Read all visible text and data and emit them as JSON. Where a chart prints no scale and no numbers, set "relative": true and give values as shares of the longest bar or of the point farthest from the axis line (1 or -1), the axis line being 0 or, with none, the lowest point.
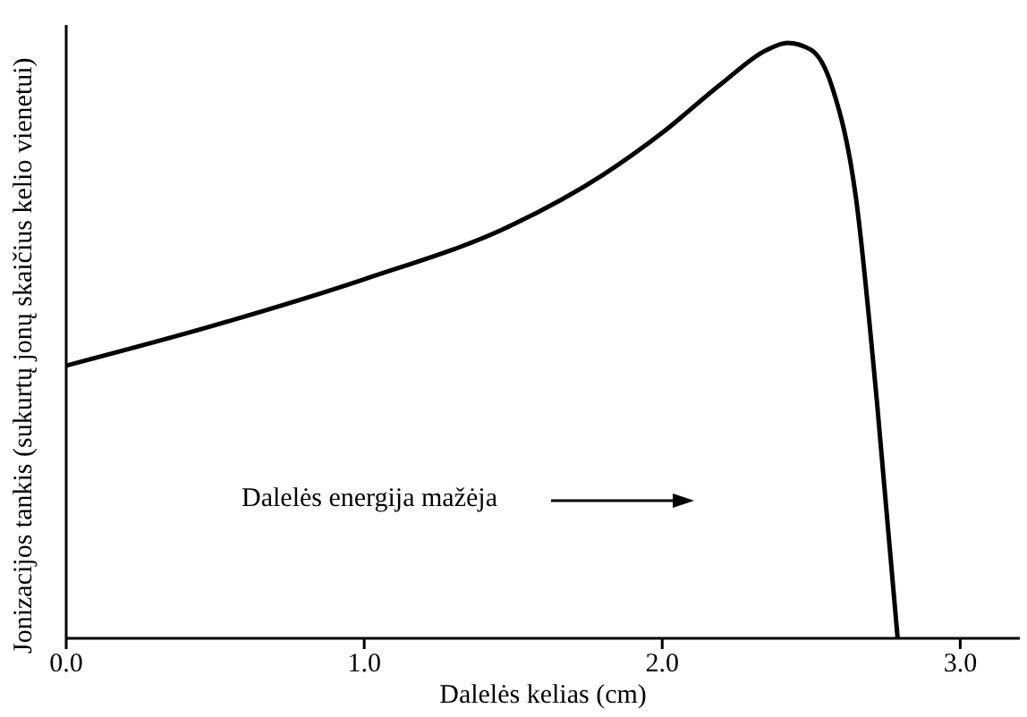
{
  "chart_data": {
    "type": "line",
    "relative": true,
    "xlabel": "Dalelės kelias (cm)",
    "ylabel": "Jonizacijos tankis (sukurtų jonų skaičius kelio vienetui)",
    "annotations": [
      "Dalelės energija mažėja"
    ],
    "xlim": [
      0,
      3.2
    ],
    "xticks": [
      {
        "value": 0,
        "label": "0.0"
      },
      {
        "value": 1,
        "label": "1.0"
      },
      {
        "value": 2,
        "label": "2.0"
      },
      {
        "value": 3,
        "label": "3.0"
      }
    ],
    "grid": false,
    "legend": false,
    "marker": "none",
    "line_style": "solid",
    "series": [
      {
        "color": "#000000",
        "x": [
          0,
          0.5,
          1.0,
          1.5,
          1.8,
          2.0,
          2.2,
          2.35,
          2.42,
          2.5,
          2.57,
          2.65,
          2.72,
          2.79
        ],
        "values": [
          0.458,
          0.526,
          0.603,
          0.695,
          0.778,
          0.849,
          0.932,
          0.988,
          1,
          0.988,
          0.926,
          0.74,
          0.4,
          0
        ]
      }
    ]
  }
}
